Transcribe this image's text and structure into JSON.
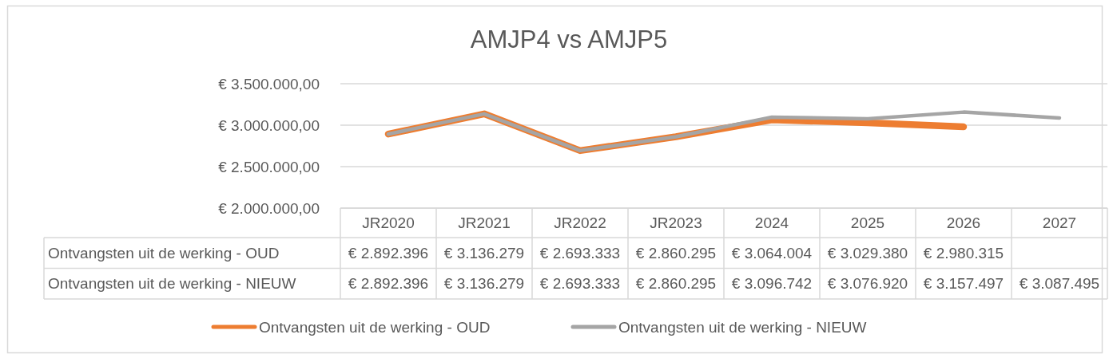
{
  "chart_data": {
    "type": "line",
    "title": "AMJP4 vs AMJP5",
    "categories": [
      "JR2020",
      "JR2021",
      "JR2022",
      "JR2023",
      "2024",
      "2025",
      "2026",
      "2027"
    ],
    "series": [
      {
        "name": "Ontvangsten uit de werking - OUD",
        "color": "#ed7d31",
        "values": [
          2892396,
          3136279,
          2693333,
          2860295,
          3064004,
          3029380,
          2980315,
          null
        ],
        "value_labels": [
          "€ 2.892.396",
          "€ 3.136.279",
          "€ 2.693.333",
          "€ 2.860.295",
          "€ 3.064.004",
          "€ 3.029.380",
          "€ 2.980.315",
          null
        ]
      },
      {
        "name": "Ontvangsten uit de werking - NIEUW",
        "color": "#a5a5a5",
        "values": [
          2892396,
          3136279,
          2693333,
          2860295,
          3096742,
          3076920,
          3157497,
          3087495
        ],
        "value_labels": [
          "€ 2.892.396",
          "€ 3.136.279",
          "€ 2.693.333",
          "€ 2.860.295",
          "€ 3.096.742",
          "€ 3.076.920",
          "€ 3.157.497",
          "€ 3.087.495"
        ]
      }
    ],
    "ylim": [
      2000000,
      3500000
    ],
    "yticks": [
      {
        "value": 2000000,
        "label": "€ 2.000.000,00"
      },
      {
        "value": 2500000,
        "label": "€ 2.500.000,00"
      },
      {
        "value": 3000000,
        "label": "€ 3.000.000,00"
      },
      {
        "value": 3500000,
        "label": "€ 3.500.000,00"
      }
    ],
    "grid": "y",
    "legend": "bottom"
  }
}
